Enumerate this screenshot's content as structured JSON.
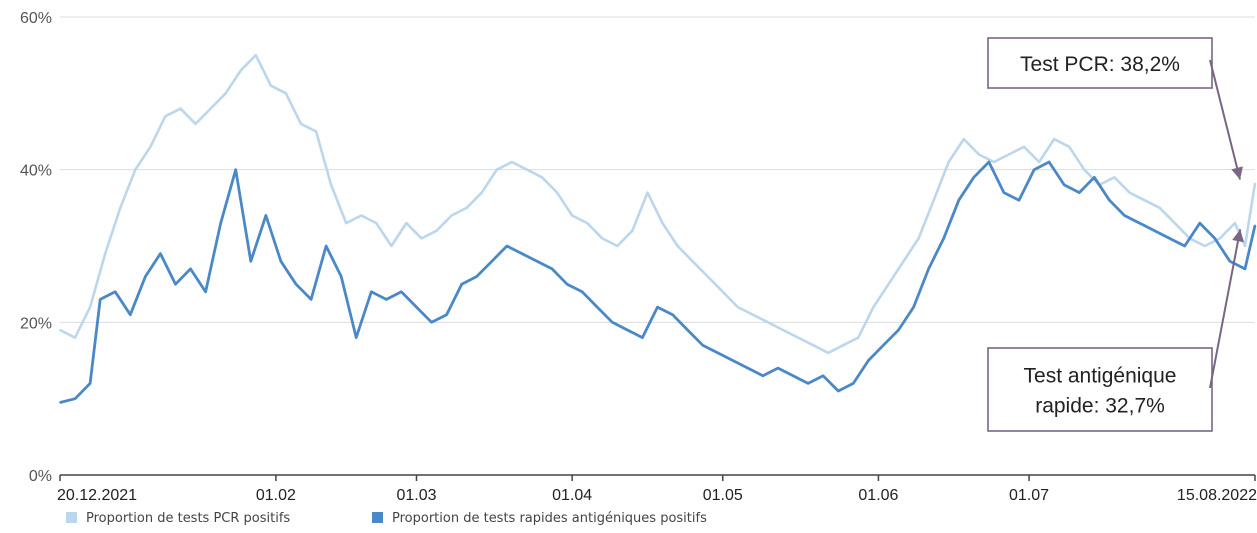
{
  "chart_data": {
    "type": "line",
    "title": "",
    "xlabel": "",
    "ylabel": "",
    "ylim": [
      0,
      60
    ],
    "y_ticks": [
      "0%",
      "20%",
      "40%",
      "60%"
    ],
    "y_tick_values": [
      0,
      20,
      40,
      60
    ],
    "x_range": [
      "2021-12-20",
      "2022-08-15"
    ],
    "x_ticks": [
      {
        "date": "2021-12-20",
        "label": "20.12.2021"
      },
      {
        "date": "2022-02-01",
        "label": "01.02"
      },
      {
        "date": "2022-03-01",
        "label": "01.03"
      },
      {
        "date": "2022-04-01",
        "label": "01.04"
      },
      {
        "date": "2022-05-01",
        "label": "01.05"
      },
      {
        "date": "2022-06-01",
        "label": "01.06"
      },
      {
        "date": "2022-07-01",
        "label": "01.07"
      },
      {
        "date": "2022-08-15",
        "label": "15.08.2022"
      }
    ],
    "grid": true,
    "legend_position": "bottom-left",
    "series": [
      {
        "name": "Proportion de tests PCR positifs",
        "color": "#bcd6ec",
        "points": [
          [
            "2021-12-20",
            19
          ],
          [
            "2021-12-23",
            18
          ],
          [
            "2021-12-26",
            22
          ],
          [
            "2021-12-29",
            29
          ],
          [
            "2022-01-01",
            35
          ],
          [
            "2022-01-04",
            40
          ],
          [
            "2022-01-07",
            43
          ],
          [
            "2022-01-10",
            47
          ],
          [
            "2022-01-13",
            48
          ],
          [
            "2022-01-16",
            46
          ],
          [
            "2022-01-19",
            48
          ],
          [
            "2022-01-22",
            50
          ],
          [
            "2022-01-25",
            53
          ],
          [
            "2022-01-28",
            55
          ],
          [
            "2022-01-31",
            51
          ],
          [
            "2022-02-03",
            50
          ],
          [
            "2022-02-06",
            46
          ],
          [
            "2022-02-09",
            45
          ],
          [
            "2022-02-12",
            38
          ],
          [
            "2022-02-15",
            33
          ],
          [
            "2022-02-18",
            34
          ],
          [
            "2022-02-21",
            33
          ],
          [
            "2022-02-24",
            30
          ],
          [
            "2022-02-27",
            33
          ],
          [
            "2022-03-02",
            31
          ],
          [
            "2022-03-05",
            32
          ],
          [
            "2022-03-08",
            34
          ],
          [
            "2022-03-11",
            35
          ],
          [
            "2022-03-14",
            37
          ],
          [
            "2022-03-17",
            40
          ],
          [
            "2022-03-20",
            41
          ],
          [
            "2022-03-23",
            40
          ],
          [
            "2022-03-26",
            39
          ],
          [
            "2022-03-29",
            37
          ],
          [
            "2022-04-01",
            34
          ],
          [
            "2022-04-04",
            33
          ],
          [
            "2022-04-07",
            31
          ],
          [
            "2022-04-10",
            30
          ],
          [
            "2022-04-13",
            32
          ],
          [
            "2022-04-16",
            37
          ],
          [
            "2022-04-19",
            33
          ],
          [
            "2022-04-22",
            30
          ],
          [
            "2022-04-25",
            28
          ],
          [
            "2022-04-28",
            26
          ],
          [
            "2022-05-01",
            24
          ],
          [
            "2022-05-04",
            22
          ],
          [
            "2022-05-07",
            21
          ],
          [
            "2022-05-10",
            20
          ],
          [
            "2022-05-13",
            19
          ],
          [
            "2022-05-16",
            18
          ],
          [
            "2022-05-19",
            17
          ],
          [
            "2022-05-22",
            16
          ],
          [
            "2022-05-25",
            17
          ],
          [
            "2022-05-28",
            18
          ],
          [
            "2022-05-31",
            22
          ],
          [
            "2022-06-03",
            25
          ],
          [
            "2022-06-06",
            28
          ],
          [
            "2022-06-09",
            31
          ],
          [
            "2022-06-12",
            36
          ],
          [
            "2022-06-15",
            41
          ],
          [
            "2022-06-18",
            44
          ],
          [
            "2022-06-21",
            42
          ],
          [
            "2022-06-24",
            41
          ],
          [
            "2022-06-27",
            42
          ],
          [
            "2022-06-30",
            43
          ],
          [
            "2022-07-03",
            41
          ],
          [
            "2022-07-06",
            44
          ],
          [
            "2022-07-09",
            43
          ],
          [
            "2022-07-12",
            40
          ],
          [
            "2022-07-15",
            38
          ],
          [
            "2022-07-18",
            39
          ],
          [
            "2022-07-21",
            37
          ],
          [
            "2022-07-24",
            36
          ],
          [
            "2022-07-27",
            35
          ],
          [
            "2022-07-30",
            33
          ],
          [
            "2022-08-02",
            31
          ],
          [
            "2022-08-05",
            30
          ],
          [
            "2022-08-08",
            31
          ],
          [
            "2022-08-11",
            33
          ],
          [
            "2022-08-13",
            30
          ],
          [
            "2022-08-15",
            38.2
          ]
        ]
      },
      {
        "name": "Proportion de tests rapides antigéniques positifs",
        "color": "#4a88c7",
        "points": [
          [
            "2021-12-20",
            9.5
          ],
          [
            "2021-12-23",
            10
          ],
          [
            "2021-12-26",
            12
          ],
          [
            "2021-12-28",
            23
          ],
          [
            "2021-12-31",
            24
          ],
          [
            "2022-01-03",
            21
          ],
          [
            "2022-01-06",
            26
          ],
          [
            "2022-01-09",
            29
          ],
          [
            "2022-01-12",
            25
          ],
          [
            "2022-01-15",
            27
          ],
          [
            "2022-01-18",
            24
          ],
          [
            "2022-01-21",
            33
          ],
          [
            "2022-01-24",
            40
          ],
          [
            "2022-01-27",
            28
          ],
          [
            "2022-01-30",
            34
          ],
          [
            "2022-02-02",
            28
          ],
          [
            "2022-02-05",
            25
          ],
          [
            "2022-02-08",
            23
          ],
          [
            "2022-02-11",
            30
          ],
          [
            "2022-02-14",
            26
          ],
          [
            "2022-02-17",
            18
          ],
          [
            "2022-02-20",
            24
          ],
          [
            "2022-02-23",
            23
          ],
          [
            "2022-02-26",
            24
          ],
          [
            "2022-03-01",
            22
          ],
          [
            "2022-03-04",
            20
          ],
          [
            "2022-03-07",
            21
          ],
          [
            "2022-03-10",
            25
          ],
          [
            "2022-03-13",
            26
          ],
          [
            "2022-03-16",
            28
          ],
          [
            "2022-03-19",
            30
          ],
          [
            "2022-03-22",
            29
          ],
          [
            "2022-03-25",
            28
          ],
          [
            "2022-03-28",
            27
          ],
          [
            "2022-03-31",
            25
          ],
          [
            "2022-04-03",
            24
          ],
          [
            "2022-04-06",
            22
          ],
          [
            "2022-04-09",
            20
          ],
          [
            "2022-04-12",
            19
          ],
          [
            "2022-04-15",
            18
          ],
          [
            "2022-04-18",
            22
          ],
          [
            "2022-04-21",
            21
          ],
          [
            "2022-04-24",
            19
          ],
          [
            "2022-04-27",
            17
          ],
          [
            "2022-04-30",
            16
          ],
          [
            "2022-05-03",
            15
          ],
          [
            "2022-05-06",
            14
          ],
          [
            "2022-05-09",
            13
          ],
          [
            "2022-05-12",
            14
          ],
          [
            "2022-05-15",
            13
          ],
          [
            "2022-05-18",
            12
          ],
          [
            "2022-05-21",
            13
          ],
          [
            "2022-05-24",
            11
          ],
          [
            "2022-05-27",
            12
          ],
          [
            "2022-05-30",
            15
          ],
          [
            "2022-06-02",
            17
          ],
          [
            "2022-06-05",
            19
          ],
          [
            "2022-06-08",
            22
          ],
          [
            "2022-06-11",
            27
          ],
          [
            "2022-06-14",
            31
          ],
          [
            "2022-06-17",
            36
          ],
          [
            "2022-06-20",
            39
          ],
          [
            "2022-06-23",
            41
          ],
          [
            "2022-06-26",
            37
          ],
          [
            "2022-06-29",
            36
          ],
          [
            "2022-07-02",
            40
          ],
          [
            "2022-07-05",
            41
          ],
          [
            "2022-07-08",
            38
          ],
          [
            "2022-07-11",
            37
          ],
          [
            "2022-07-14",
            39
          ],
          [
            "2022-07-17",
            36
          ],
          [
            "2022-07-20",
            34
          ],
          [
            "2022-07-23",
            33
          ],
          [
            "2022-07-26",
            32
          ],
          [
            "2022-07-29",
            31
          ],
          [
            "2022-08-01",
            30
          ],
          [
            "2022-08-04",
            33
          ],
          [
            "2022-08-07",
            31
          ],
          [
            "2022-08-10",
            28
          ],
          [
            "2022-08-13",
            27
          ],
          [
            "2022-08-15",
            32.7
          ]
        ]
      }
    ],
    "annotations": [
      {
        "series": 0,
        "lines": [
          "Test PCR: 38,2%"
        ]
      },
      {
        "series": 1,
        "lines": [
          "Test antigénique",
          "rapide: 32,7%"
        ]
      }
    ]
  }
}
